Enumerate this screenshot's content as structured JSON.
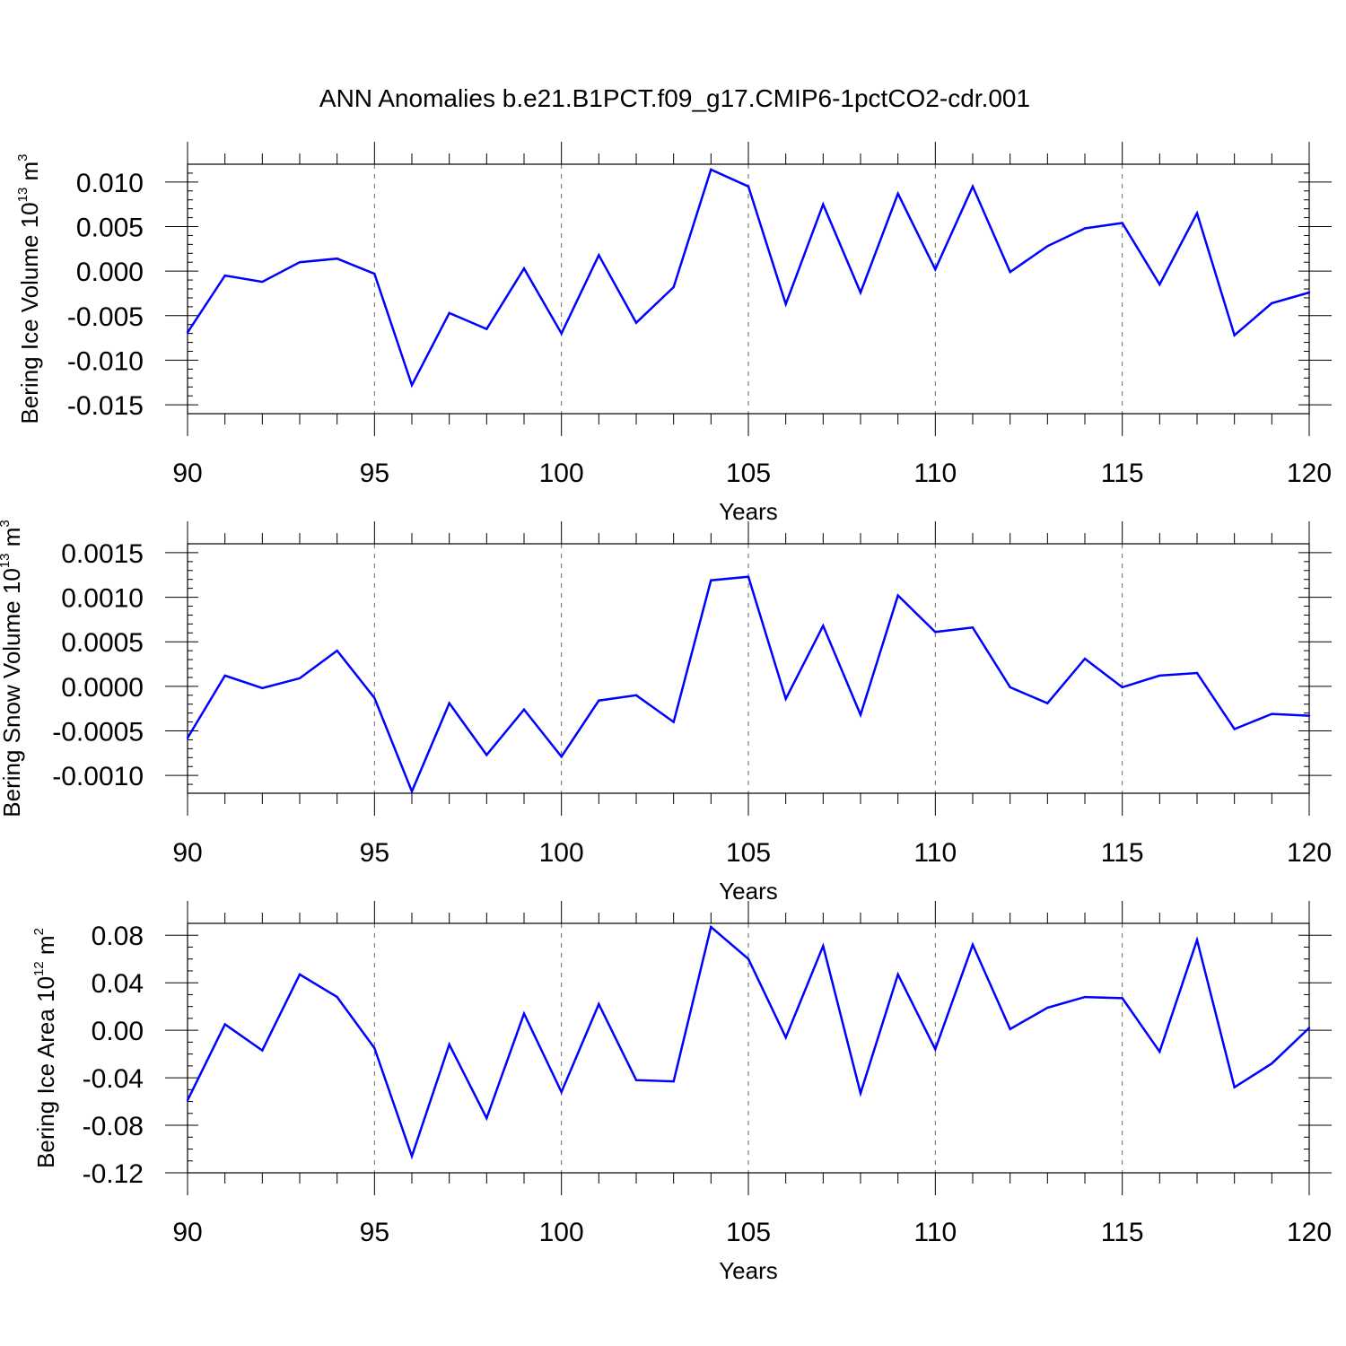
{
  "chart_data": {
    "type": "line",
    "title": "ANN Anomalies b.e21.B1PCT.f09_g17.CMIP6-1pctCO2-cdr.001",
    "line_color": "#0000ff",
    "x": [
      90,
      91,
      92,
      93,
      94,
      95,
      96,
      97,
      98,
      99,
      100,
      101,
      102,
      103,
      104,
      105,
      106,
      107,
      108,
      109,
      110,
      111,
      112,
      113,
      114,
      115,
      116,
      117,
      118,
      119,
      120
    ],
    "panels": [
      {
        "name": "ice-volume",
        "ylabel_main": "Bering Ice Volume 10",
        "ylabel_exp": "13",
        "ylabel_unit": " m",
        "ylabel_unit_exp": "3",
        "xlabel": "Years",
        "xlim": [
          90,
          120
        ],
        "ylim": [
          -0.016,
          0.012
        ],
        "yticks": [
          0.01,
          0.005,
          0.0,
          -0.005,
          -0.01,
          -0.015
        ],
        "ytick_labels": [
          "0.010",
          "0.005",
          "0.000",
          "-0.005",
          "-0.010",
          "-0.015"
        ],
        "yminor_step": 0.001,
        "xticks": [
          90,
          95,
          100,
          105,
          110,
          115,
          120
        ],
        "xtick_labels": [
          "90",
          "95",
          "100",
          "105",
          "110",
          "115",
          "120"
        ],
        "grid_x": [
          95,
          100,
          105,
          110,
          115
        ],
        "values": [
          -0.0069,
          -0.0005,
          -0.0012,
          0.001,
          0.0014,
          -0.0003,
          -0.0128,
          -0.0047,
          -0.0065,
          0.0003,
          -0.007,
          0.0018,
          -0.0058,
          -0.0018,
          0.0114,
          0.0095,
          -0.0037,
          0.0075,
          -0.0024,
          0.0087,
          0.0002,
          0.0095,
          -0.0001,
          0.0028,
          0.0048,
          0.0054,
          -0.0015,
          0.0065,
          -0.0072,
          -0.0036,
          -0.0024
        ]
      },
      {
        "name": "snow-volume",
        "ylabel_main": "Bering Snow Volume 10",
        "ylabel_exp": "13",
        "ylabel_unit": " m",
        "ylabel_unit_exp": "3",
        "xlabel": "Years",
        "xlim": [
          90,
          120
        ],
        "ylim": [
          -0.0012,
          0.0016
        ],
        "yticks": [
          0.0015,
          0.001,
          0.0005,
          0.0,
          -0.0005,
          -0.001
        ],
        "ytick_labels": [
          "0.0015",
          "0.0010",
          "0.0005",
          "0.0000",
          "-0.0005",
          "-0.0010"
        ],
        "yminor_step": 0.0001,
        "xticks": [
          90,
          95,
          100,
          105,
          110,
          115,
          120
        ],
        "xtick_labels": [
          "90",
          "95",
          "100",
          "105",
          "110",
          "115",
          "120"
        ],
        "grid_x": [
          95,
          100,
          105,
          110,
          115
        ],
        "values": [
          -0.00058,
          0.00012,
          -2e-05,
          9e-05,
          0.0004,
          -0.00013,
          -0.00118,
          -0.00019,
          -0.00077,
          -0.00026,
          -0.00079,
          -0.00016,
          -0.0001,
          -0.0004,
          0.00119,
          0.00123,
          -0.00014,
          0.00068,
          -0.00032,
          0.00102,
          0.00061,
          0.00066,
          -1e-05,
          -0.00019,
          0.00031,
          -1e-05,
          0.00012,
          0.00015,
          -0.00048,
          -0.00031,
          -0.00033
        ]
      },
      {
        "name": "ice-area",
        "ylabel_main": "Bering Ice Area 10",
        "ylabel_exp": "12",
        "ylabel_unit": " m",
        "ylabel_unit_exp": "2",
        "xlabel": "Years",
        "xlim": [
          90,
          120
        ],
        "ylim": [
          -0.12,
          0.09
        ],
        "yticks": [
          0.08,
          0.04,
          0.0,
          -0.04,
          -0.08,
          -0.12
        ],
        "ytick_labels": [
          "0.08",
          "0.04",
          "0.00",
          "-0.04",
          "-0.08",
          "-0.12"
        ],
        "yminor_step": 0.01,
        "xticks": [
          90,
          95,
          100,
          105,
          110,
          115,
          120
        ],
        "xtick_labels": [
          "90",
          "95",
          "100",
          "105",
          "110",
          "115",
          "120"
        ],
        "grid_x": [
          95,
          100,
          105,
          110,
          115
        ],
        "values": [
          -0.059,
          0.005,
          -0.017,
          0.047,
          0.028,
          -0.015,
          -0.106,
          -0.012,
          -0.074,
          0.014,
          -0.052,
          0.022,
          -0.042,
          -0.043,
          0.087,
          0.06,
          -0.006,
          0.071,
          -0.053,
          0.047,
          -0.016,
          0.072,
          0.001,
          0.019,
          0.028,
          0.027,
          -0.018,
          0.076,
          -0.048,
          -0.028,
          0.002
        ]
      }
    ]
  }
}
